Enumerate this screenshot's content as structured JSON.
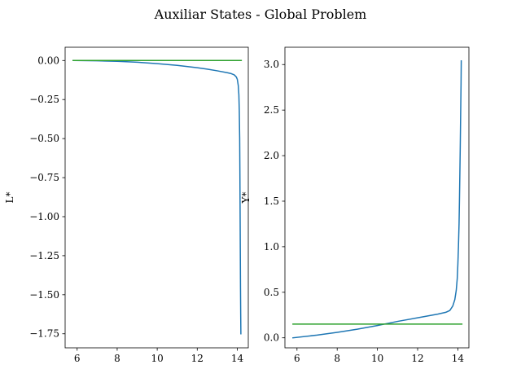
{
  "chart_data": {
    "suptitle": "Auxiliar States - Global Problem",
    "panels": [
      {
        "type": "line",
        "xlabel": "",
        "ylabel": "L*",
        "xlim": [
          5.4,
          14.55
        ],
        "ylim": [
          -1.84,
          0.085
        ],
        "xticks": [
          6,
          8,
          10,
          12,
          14
        ],
        "yticks": [
          0.0,
          -0.25,
          -0.5,
          -0.75,
          -1.0,
          -1.25,
          -1.5,
          -1.75
        ],
        "xtick_labels": [
          "6",
          "8",
          "10",
          "12",
          "14"
        ],
        "ytick_labels": [
          "0.00",
          "−0.25",
          "−0.50",
          "−0.75",
          "−1.00",
          "−1.25",
          "−1.50",
          "−1.75"
        ],
        "grid": false,
        "series": [
          {
            "color": "#1f77b4",
            "x": [
              5.8,
              7.0,
              8.0,
              9.0,
              10.0,
              11.0,
              12.0,
              12.5,
              13.0,
              13.5,
              13.7,
              13.85,
              13.95,
              14.0,
              14.05,
              14.08,
              14.1,
              14.12,
              14.13,
              14.14,
              14.15,
              14.16,
              14.17,
              14.18
            ],
            "y": [
              0.0,
              -0.002,
              -0.005,
              -0.011,
              -0.02,
              -0.031,
              -0.046,
              -0.055,
              -0.066,
              -0.078,
              -0.084,
              -0.092,
              -0.105,
              -0.12,
              -0.16,
              -0.22,
              -0.32,
              -0.5,
              -0.7,
              -0.95,
              -1.2,
              -1.45,
              -1.62,
              -1.75
            ]
          },
          {
            "color": "#2ca02c",
            "x": [
              5.8,
              14.2
            ],
            "y": [
              0.0,
              0.0
            ]
          }
        ]
      },
      {
        "type": "line",
        "xlabel": "",
        "ylabel": "Y*",
        "xlim": [
          5.4,
          14.55
        ],
        "ylim": [
          -0.11,
          3.19
        ],
        "xticks": [
          6,
          8,
          10,
          12,
          14
        ],
        "yticks": [
          0.0,
          0.5,
          1.0,
          1.5,
          2.0,
          2.5,
          3.0
        ],
        "xtick_labels": [
          "6",
          "8",
          "10",
          "12",
          "14"
        ],
        "ytick_labels": [
          "0.0",
          "0.5",
          "1.0",
          "1.5",
          "2.0",
          "2.5",
          "3.0"
        ],
        "grid": false,
        "series": [
          {
            "color": "#1f77b4",
            "x": [
              5.8,
              7.0,
              8.0,
              9.0,
              10.0,
              11.0,
              12.0,
              12.5,
              13.0,
              13.4,
              13.6,
              13.75,
              13.85,
              13.92,
              13.97,
              14.0,
              14.03,
              14.06,
              14.08,
              14.1,
              14.12,
              14.14,
              14.16,
              14.17
            ],
            "y": [
              0.0,
              0.03,
              0.06,
              0.095,
              0.135,
              0.18,
              0.22,
              0.24,
              0.26,
              0.28,
              0.3,
              0.35,
              0.42,
              0.52,
              0.65,
              0.8,
              1.0,
              1.25,
              1.5,
              1.8,
              2.1,
              2.45,
              2.8,
              3.04
            ]
          },
          {
            "color": "#2ca02c",
            "x": [
              5.8,
              14.2
            ],
            "y": [
              0.15,
              0.15
            ]
          }
        ]
      }
    ]
  }
}
